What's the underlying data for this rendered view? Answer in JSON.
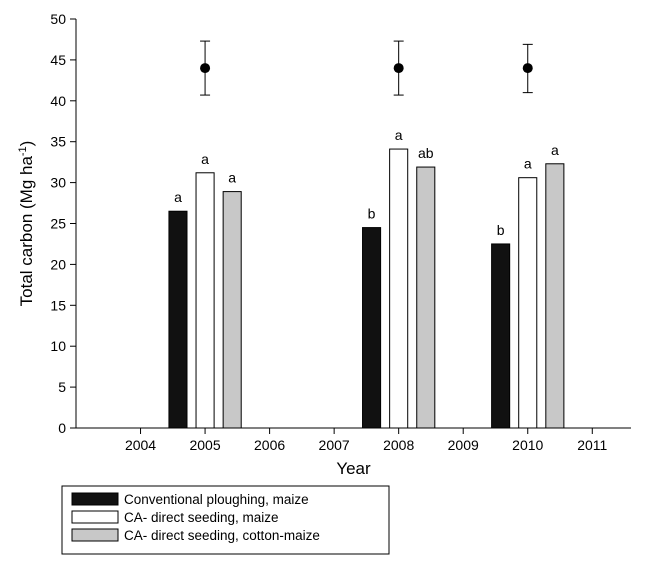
{
  "chart_data": {
    "type": "bar",
    "xlabel": "Year",
    "ylabel": "Total carbon (Mg ha",
    "ylabel_sup": "-1",
    "ylabel_end": ")",
    "xlim": [
      2003,
      2011.6
    ],
    "ylim": [
      0,
      50
    ],
    "x_ticks": [
      "2004",
      "2005",
      "2006",
      "2007",
      "2008",
      "2009",
      "2010",
      "2011"
    ],
    "y_ticks": [
      "0",
      "5",
      "10",
      "15",
      "20",
      "25",
      "30",
      "35",
      "40",
      "45",
      "50"
    ],
    "grid": false,
    "legend_position": "bottom-left",
    "categories": [
      "2005",
      "2008",
      "2010"
    ],
    "series": [
      {
        "name": "Conventional ploughing, maize",
        "color": "#111111",
        "values": [
          26.5,
          24.5,
          22.5
        ],
        "labels": [
          "a",
          "b",
          "b"
        ]
      },
      {
        "name": "CA- direct seeding, maize",
        "color": "#ffffff",
        "values": [
          31.2,
          34.1,
          30.6
        ],
        "labels": [
          "a",
          "a",
          "a"
        ]
      },
      {
        "name": "CA- direct seeding, cotton-maize",
        "color": "#c8c8c8",
        "values": [
          28.9,
          31.9,
          32.3
        ],
        "labels": [
          "a",
          "ab",
          "a"
        ]
      }
    ],
    "reference_points": [
      {
        "x": 2005,
        "y": 44.0,
        "low": 40.7,
        "high": 47.3
      },
      {
        "x": 2008,
        "y": 44.0,
        "low": 40.7,
        "high": 47.3
      },
      {
        "x": 2010,
        "y": 44.0,
        "low": 41.0,
        "high": 46.9
      }
    ]
  }
}
